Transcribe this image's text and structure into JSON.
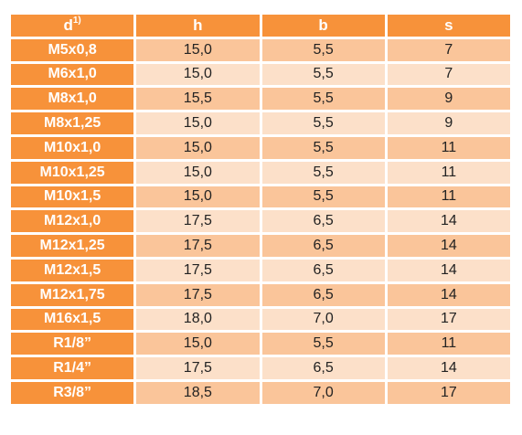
{
  "headers": {
    "d": "d",
    "d_sup": "1)",
    "h": "h",
    "b": "b",
    "s": "s"
  },
  "rows": [
    {
      "d": "M5x0,8",
      "h": "15,0",
      "b": "5,5",
      "s": "7"
    },
    {
      "d": "M6x1,0",
      "h": "15,0",
      "b": "5,5",
      "s": "7"
    },
    {
      "d": "M8x1,0",
      "h": "15,5",
      "b": "5,5",
      "s": "9"
    },
    {
      "d": "M8x1,25",
      "h": "15,0",
      "b": "5,5",
      "s": "9"
    },
    {
      "d": "M10x1,0",
      "h": "15,0",
      "b": "5,5",
      "s": "11"
    },
    {
      "d": "M10x1,25",
      "h": "15,0",
      "b": "5,5",
      "s": "11"
    },
    {
      "d": "M10x1,5",
      "h": "15,0",
      "b": "5,5",
      "s": "11"
    },
    {
      "d": "M12x1,0",
      "h": "17,5",
      "b": "6,5",
      "s": "14"
    },
    {
      "d": "M12x1,25",
      "h": "17,5",
      "b": "6,5",
      "s": "14"
    },
    {
      "d": "M12x1,5",
      "h": "17,5",
      "b": "6,5",
      "s": "14"
    },
    {
      "d": "M12x1,75",
      "h": "17,5",
      "b": "6,5",
      "s": "14"
    },
    {
      "d": "M16x1,5",
      "h": "18,0",
      "b": "7,0",
      "s": "17"
    },
    {
      "d": "R1/8”",
      "h": "15,0",
      "b": "5,5",
      "s": "11"
    },
    {
      "d": "R1/4”",
      "h": "17,5",
      "b": "6,5",
      "s": "14"
    },
    {
      "d": "R3/8”",
      "h": "18,5",
      "b": "7,0",
      "s": "17"
    }
  ],
  "colors": {
    "header_bg": "#f7923a",
    "row_dark": "#fac59a",
    "row_light": "#fce0c9"
  }
}
